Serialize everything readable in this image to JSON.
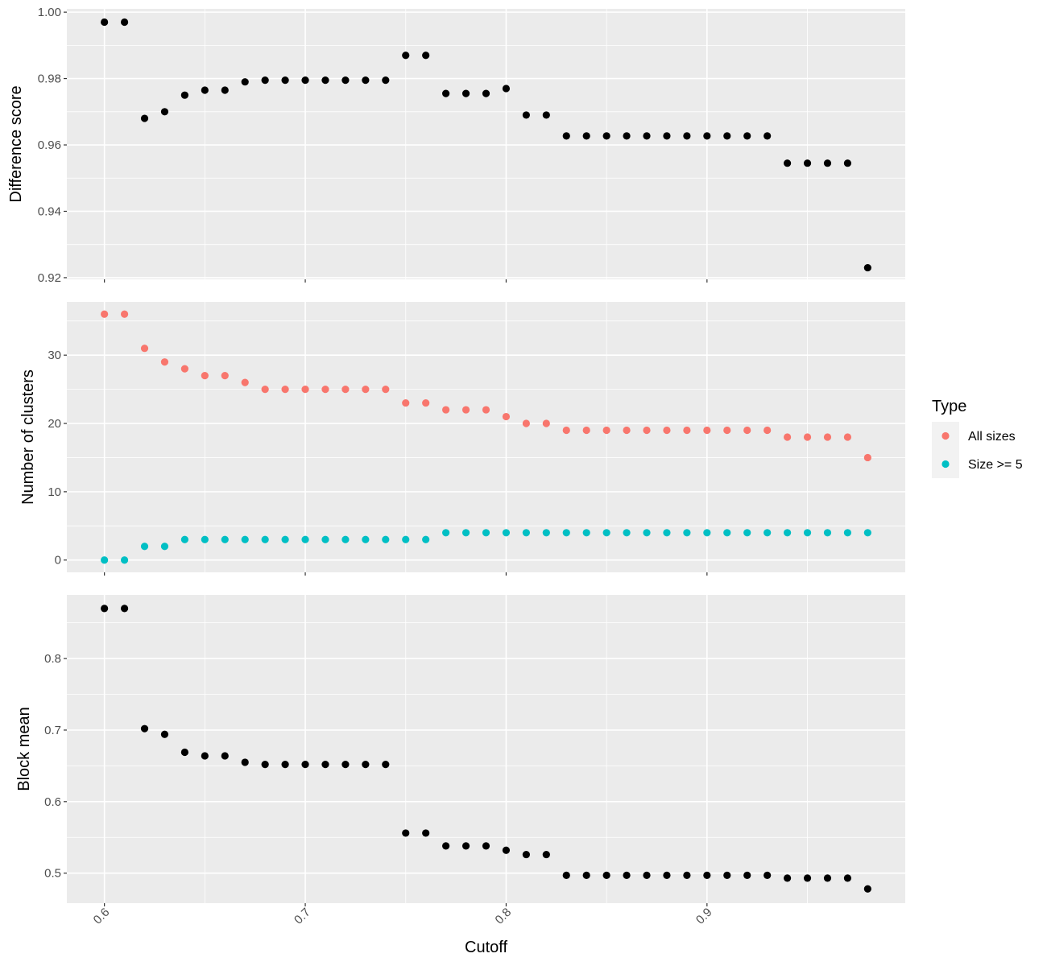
{
  "chart_data": {
    "type": "scatter",
    "x_label": "Cutoff",
    "x_ticks": [
      0.6,
      0.7,
      0.8,
      0.9
    ],
    "x_tick_labels": [
      "0.6",
      "0.7",
      "0.8",
      "0.9"
    ],
    "xlim": [
      0.5813,
      0.9987
    ],
    "x": [
      0.6,
      0.61,
      0.62,
      0.63,
      0.64,
      0.65,
      0.66,
      0.67,
      0.68,
      0.69,
      0.7,
      0.71,
      0.72,
      0.73,
      0.74,
      0.75,
      0.76,
      0.77,
      0.78,
      0.79,
      0.8,
      0.81,
      0.82,
      0.83,
      0.84,
      0.85,
      0.86,
      0.87,
      0.88,
      0.89,
      0.9,
      0.91,
      0.92,
      0.93,
      0.94,
      0.95,
      0.96,
      0.97,
      0.98
    ],
    "grid": true,
    "panels": [
      {
        "ylabel": "Difference score",
        "ylim": [
          0.9195,
          1.001
        ],
        "y_ticks": [
          0.92,
          0.94,
          0.96,
          0.98,
          1.0
        ],
        "y_tick_labels": [
          "0.92",
          "0.94",
          "0.96",
          "0.98",
          "1.00"
        ],
        "series": [
          {
            "color": "#000000",
            "values": [
              0.997,
              0.997,
              0.968,
              0.97,
              0.975,
              0.9765,
              0.9765,
              0.979,
              0.9795,
              0.9795,
              0.9795,
              0.9795,
              0.9795,
              0.9795,
              0.9795,
              0.987,
              0.987,
              0.9755,
              0.9755,
              0.9755,
              0.977,
              0.969,
              0.969,
              0.9627,
              0.9627,
              0.9627,
              0.9627,
              0.9627,
              0.9627,
              0.9627,
              0.9627,
              0.9627,
              0.9627,
              0.9627,
              0.9545,
              0.9545,
              0.9545,
              0.9545,
              0.923
            ]
          }
        ]
      },
      {
        "ylabel": "Number of clusters",
        "ylim": [
          -1.8,
          37.8
        ],
        "y_ticks": [
          0,
          10,
          20,
          30
        ],
        "y_tick_labels": [
          "0",
          "10",
          "20",
          "30"
        ],
        "series": [
          {
            "name": "All sizes",
            "color": "#F8766D",
            "values": [
              36,
              36,
              31,
              29,
              28,
              27,
              27,
              26,
              25,
              25,
              25,
              25,
              25,
              25,
              25,
              23,
              23,
              22,
              22,
              22,
              21,
              20,
              20,
              19,
              19,
              19,
              19,
              19,
              19,
              19,
              19,
              19,
              19,
              19,
              18,
              18,
              18,
              18,
              15
            ]
          },
          {
            "name": "Size >= 5",
            "color": "#00BFC4",
            "values": [
              0,
              0,
              2,
              2,
              3,
              3,
              3,
              3,
              3,
              3,
              3,
              3,
              3,
              3,
              3,
              3,
              3,
              4,
              4,
              4,
              4,
              4,
              4,
              4,
              4,
              4,
              4,
              4,
              4,
              4,
              4,
              4,
              4,
              4,
              4,
              4,
              4,
              4,
              4
            ]
          }
        ]
      },
      {
        "ylabel": "Block mean",
        "ylim": [
          0.458,
          0.889
        ],
        "y_ticks": [
          0.5,
          0.6,
          0.7,
          0.8
        ],
        "y_tick_labels": [
          "0.5",
          "0.6",
          "0.7",
          "0.8"
        ],
        "series": [
          {
            "color": "#000000",
            "values": [
              0.87,
              0.87,
              0.702,
              0.694,
              0.669,
              0.664,
              0.664,
              0.655,
              0.652,
              0.652,
              0.652,
              0.652,
              0.652,
              0.652,
              0.652,
              0.556,
              0.556,
              0.538,
              0.538,
              0.538,
              0.532,
              0.526,
              0.526,
              0.497,
              0.497,
              0.497,
              0.497,
              0.497,
              0.497,
              0.497,
              0.497,
              0.497,
              0.497,
              0.497,
              0.493,
              0.493,
              0.493,
              0.493,
              0.478
            ]
          }
        ]
      }
    ],
    "legend": {
      "title": "Type",
      "position": "right",
      "items": [
        {
          "label": "All sizes",
          "color": "#F8766D"
        },
        {
          "label": "Size >= 5",
          "color": "#00BFC4"
        }
      ]
    }
  }
}
